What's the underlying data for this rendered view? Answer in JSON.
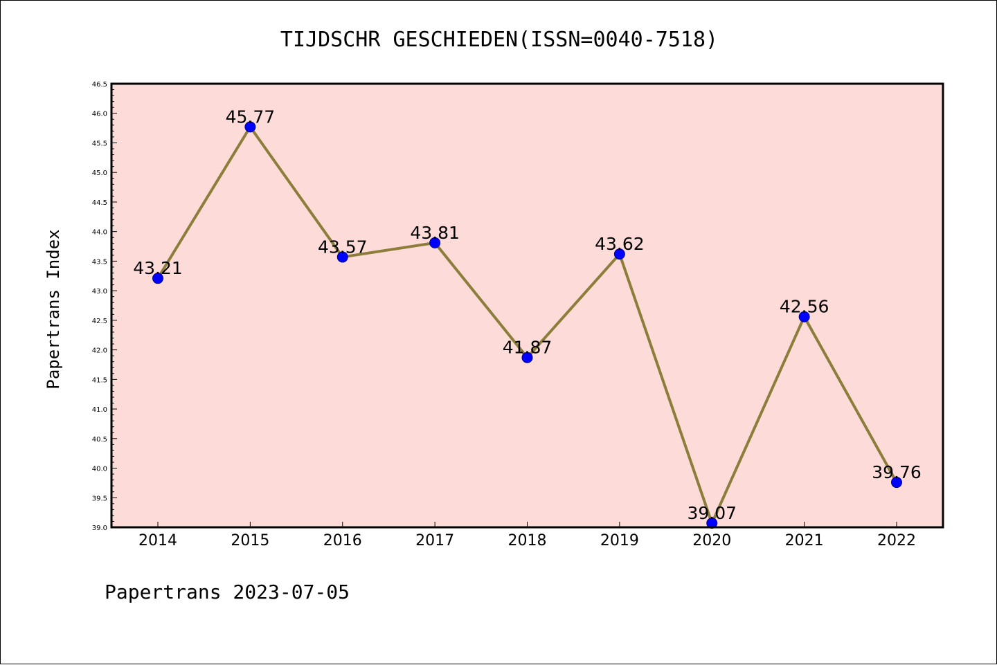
{
  "chart_data": {
    "type": "line",
    "title": "TIJDSCHR GESCHIEDEN(ISSN=0040-7518)",
    "xlabel": "",
    "ylabel": "Papertrans Index",
    "categories": [
      "2014",
      "2015",
      "2016",
      "2017",
      "2018",
      "2019",
      "2020",
      "2021",
      "2022"
    ],
    "series": [
      {
        "values": [
          43.21,
          45.77,
          43.57,
          43.81,
          41.87,
          43.62,
          39.07,
          42.56,
          39.76
        ],
        "data_labels": [
          "43.21",
          "45.77",
          "43.57",
          "43.81",
          "41.87",
          "43.62",
          "39.07",
          "42.56",
          "39.76"
        ]
      }
    ],
    "ylim": [
      39.0,
      46.5
    ],
    "yticks": [
      "39.0",
      "39.5",
      "40.0",
      "40.5",
      "41.0",
      "41.5",
      "42.0",
      "42.5",
      "43.0",
      "43.5",
      "44.0",
      "44.5",
      "45.0",
      "45.5",
      "46.0",
      "46.5"
    ],
    "grid": false,
    "legend": "none",
    "colors": {
      "plot_background": "#fddbd8",
      "line": "#8c7d3a",
      "marker": "#0000ff",
      "marker_edge": "#00008b"
    }
  },
  "footer": {
    "text": "Papertrans 2023-07-05"
  }
}
